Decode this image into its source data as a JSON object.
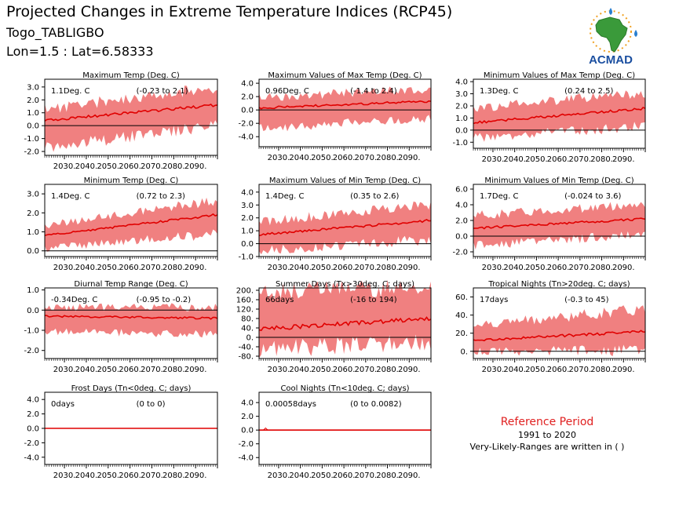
{
  "header": {
    "title": "Projected Changes in Extreme Temperature Indices (RCP45)",
    "station": "Togo_TABLIGBO",
    "coords": "Lon=1.5 : Lat=6.58333"
  },
  "logo": {
    "text": "ACMAD",
    "colors": {
      "africa": "#3a9a3a",
      "text": "#1b4fa0",
      "rays": "#f0a020",
      "drop": "#2a7fd0"
    }
  },
  "reference": {
    "title": "Reference Period",
    "period": "1991 to 2020",
    "note": "Very-Likely-Ranges are written in ( )"
  },
  "style": {
    "band_color": "#f08080",
    "line_color": "#e00000"
  },
  "chart_data": [
    {
      "type": "area",
      "title": "Maximum Temp (Deg. C)",
      "value_label": "1.1Deg. C",
      "range_label": "(-0.23 to 2.1)",
      "ylim": [
        -2.3,
        3.6
      ],
      "yticks": [
        3.0,
        2.0,
        1.0,
        0.0,
        -1.0,
        -2.0
      ],
      "ytick_labels": [
        "3.0",
        "2.0",
        "1.0",
        "0.0",
        "-1.0",
        "-2.0"
      ],
      "x": {
        "start": 2021,
        "end": 2100
      },
      "xtick_labels": [
        "2030.",
        "2040.",
        "2050.",
        "2060.",
        "2070.",
        "2080.",
        "2090."
      ],
      "median_start": 0.4,
      "median_end": 1.6,
      "low_start": -1.5,
      "low_end": 0.2,
      "high_start": 1.2,
      "high_end": 2.9
    },
    {
      "type": "area",
      "title": "Maximum Values of Max Temp (Deg. C)",
      "value_label": "0.96Deg. C",
      "range_label": "(-1.4 to 2.4)",
      "ylim": [
        -5.5,
        4.6
      ],
      "yticks": [
        4.0,
        2.0,
        0.0,
        -2.0,
        -4.0
      ],
      "ytick_labels": [
        "4.0",
        "2.0",
        "0.0",
        "-2.0",
        "-4.0"
      ],
      "x": {
        "start": 2021,
        "end": 2100
      },
      "xtick_labels": [
        "2030.",
        "2040.",
        "2050.",
        "2060.",
        "2070.",
        "2080.",
        "2090."
      ],
      "median_start": 0.3,
      "median_end": 1.3,
      "low_start": -2.5,
      "low_end": -1.0,
      "high_start": 1.8,
      "high_end": 3.0
    },
    {
      "type": "area",
      "title": "Minimum Values of Max Temp (Deg. C)",
      "value_label": "1.3Deg. C",
      "range_label": "(0.24 to 2.5)",
      "ylim": [
        -1.5,
        4.2
      ],
      "yticks": [
        4.0,
        3.0,
        2.0,
        1.0,
        0.0,
        -1.0
      ],
      "ytick_labels": [
        "4.0",
        "3.0",
        "2.0",
        "1.0",
        "0.0",
        "-1.0"
      ],
      "x": {
        "start": 2021,
        "end": 2100
      },
      "xtick_labels": [
        "2030.",
        "2040.",
        "2050.",
        "2060.",
        "2070.",
        "2080.",
        "2090."
      ],
      "median_start": 0.6,
      "median_end": 1.8,
      "low_start": -0.5,
      "low_end": 0.5,
      "high_start": 1.7,
      "high_end": 3.0
    },
    {
      "type": "area",
      "title": "Minimum Temp (Deg. C)",
      "value_label": "1.4Deg. C",
      "range_label": "(0.72 to 2.3)",
      "ylim": [
        -0.3,
        3.5
      ],
      "yticks": [
        3.0,
        2.0,
        1.0,
        0.0
      ],
      "ytick_labels": [
        "3.0",
        "2.0",
        "1.0",
        "0.0"
      ],
      "x": {
        "start": 2021,
        "end": 2100
      },
      "xtick_labels": [
        "2030.",
        "2040.",
        "2050.",
        "2060.",
        "2070.",
        "2080.",
        "2090."
      ],
      "median_start": 0.8,
      "median_end": 1.9,
      "low_start": 0.2,
      "low_end": 1.0,
      "high_start": 1.3,
      "high_end": 2.6
    },
    {
      "type": "area",
      "title": "Maximum Values of Min Temp (Deg. C)",
      "value_label": "1.4Deg. C",
      "range_label": "(0.35 to 2.6)",
      "ylim": [
        -1.0,
        4.6
      ],
      "yticks": [
        4.0,
        3.0,
        2.0,
        1.0,
        0.0,
        -1.0
      ],
      "ytick_labels": [
        "4.0",
        "3.0",
        "2.0",
        "1.0",
        "0.0",
        "-1.0"
      ],
      "x": {
        "start": 2021,
        "end": 2100
      },
      "xtick_labels": [
        "2030.",
        "2040.",
        "2050.",
        "2060.",
        "2070.",
        "2080.",
        "2090."
      ],
      "median_start": 0.7,
      "median_end": 1.8,
      "low_start": -0.4,
      "low_end": 0.5,
      "high_start": 1.6,
      "high_end": 3.0
    },
    {
      "type": "area",
      "title": "Minimum Values of Min Temp (Deg. C)",
      "value_label": "1.7Deg. C",
      "range_label": "(-0.024 to 3.6)",
      "ylim": [
        -2.6,
        6.6
      ],
      "yticks": [
        6.0,
        4.0,
        2.0,
        0.0,
        -2.0
      ],
      "ytick_labels": [
        "6.0",
        "4.0",
        "2.0",
        "0.0",
        "-2.0"
      ],
      "x": {
        "start": 2021,
        "end": 2100
      },
      "xtick_labels": [
        "2030.",
        "2040.",
        "2050.",
        "2060.",
        "2070.",
        "2080.",
        "2090."
      ],
      "median_start": 1.0,
      "median_end": 2.2,
      "low_start": -1.0,
      "low_end": 0.5,
      "high_start": 2.5,
      "high_end": 4.0
    },
    {
      "type": "area",
      "title": "Diurnal Temp Range (Deg. C)",
      "value_label": "-0.34Deg. C",
      "range_label": "(-0.95 to -0.2)",
      "ylim": [
        -2.4,
        1.1
      ],
      "yticks": [
        1.0,
        0.0,
        -1.0,
        -2.0
      ],
      "ytick_labels": [
        "1.0",
        "0.0",
        "-1.0",
        "-2.0"
      ],
      "x": {
        "start": 2021,
        "end": 2100
      },
      "xtick_labels": [
        "2030.",
        "2040.",
        "2050.",
        "2060.",
        "2070.",
        "2080.",
        "2090."
      ],
      "median_start": -0.3,
      "median_end": -0.4,
      "low_start": -1.0,
      "low_end": -1.1,
      "high_start": 0.1,
      "high_end": 0.1
    },
    {
      "type": "area",
      "title": "Summer Days (Tx>30deg. C; days)",
      "value_label": "66days",
      "range_label": "(-16 to 194)",
      "ylim": [
        -90,
        210
      ],
      "yticks": [
        200,
        160,
        120,
        80,
        40,
        0,
        -40,
        -80
      ],
      "ytick_labels": [
        "200.",
        "160.",
        "120.",
        "80.",
        "40.",
        "0.",
        "-40.",
        "-80."
      ],
      "x": {
        "start": 2021,
        "end": 2100
      },
      "xtick_labels": [
        "2030.",
        "2040.",
        "2050.",
        "2060.",
        "2070.",
        "2080.",
        "2090."
      ],
      "median_start": 35,
      "median_end": 80,
      "low_start": -35,
      "low_end": -5,
      "high_start": 190,
      "high_end": 205
    },
    {
      "type": "area",
      "title": "Tropical Nights (Tn>20deg. C; days)",
      "value_label": "17days",
      "range_label": "(-0.3 to 45)",
      "ylim": [
        -8,
        70
      ],
      "yticks": [
        60,
        40,
        20,
        0
      ],
      "ytick_labels": [
        "60.",
        "40.",
        "20.",
        "0."
      ],
      "x": {
        "start": 2021,
        "end": 2100
      },
      "xtick_labels": [
        "2030.",
        "2040.",
        "2050.",
        "2060.",
        "2070.",
        "2080.",
        "2090."
      ],
      "median_start": 12,
      "median_end": 22,
      "low_start": 1,
      "low_end": 4,
      "high_start": 28,
      "high_end": 45
    },
    {
      "type": "area",
      "title": "Frost Days (Tn<0deg. C; days)",
      "value_label": "0days",
      "range_label": "(0 to 0)",
      "ylim": [
        -5,
        5
      ],
      "yticks": [
        4.0,
        2.0,
        0.0,
        -2.0,
        -4.0
      ],
      "ytick_labels": [
        "4.0",
        "2.0",
        "0.0",
        "-2.0",
        "-4.0"
      ],
      "x": {
        "start": 2021,
        "end": 2100
      },
      "xtick_labels": [
        "2030.",
        "2040.",
        "2050.",
        "2060.",
        "2070.",
        "2080.",
        "2090."
      ],
      "median_start": 0,
      "median_end": 0,
      "low_start": 0,
      "low_end": 0,
      "high_start": 0,
      "high_end": 0
    },
    {
      "type": "area",
      "title": "Cool Nights (Tn<10deg. C; days)",
      "value_label": "0.00058days",
      "range_label": "(0 to 0.0082)",
      "ylim": [
        -5,
        5.5
      ],
      "yticks": [
        4.0,
        2.0,
        0.0,
        -2.0,
        -4.0
      ],
      "ytick_labels": [
        "4.0",
        "2.0",
        "0.0",
        "-2.0",
        "-4.0"
      ],
      "x": {
        "start": 2021,
        "end": 2100
      },
      "xtick_labels": [
        "2030.",
        "2040.",
        "2050.",
        "2060.",
        "2070.",
        "2080.",
        "2090."
      ],
      "median_start": 0,
      "median_end": 0,
      "low_start": 0,
      "low_end": 0,
      "high_start": 0,
      "high_end": 0,
      "early_spike": 0.3
    }
  ]
}
